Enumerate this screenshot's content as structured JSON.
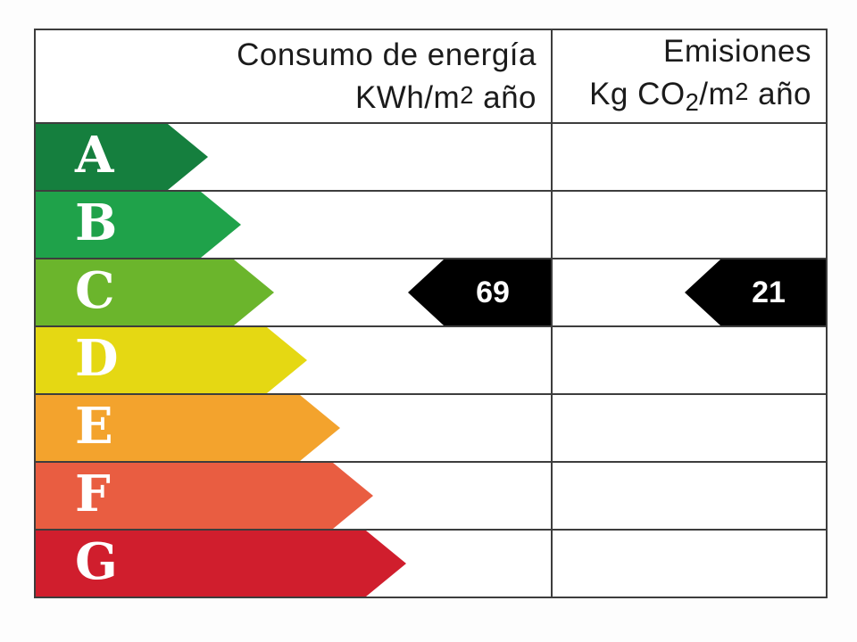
{
  "header": {
    "consumption": {
      "line1": "Consumo de energía",
      "line2": {
        "pre": "KWh/m",
        "sup": "2",
        "post": " año"
      }
    },
    "emissions": {
      "line1": "Emisiones",
      "line2": {
        "pre": "Kg CO",
        "sub": "2",
        "mid": "/m",
        "sup": "2",
        "post": " año"
      }
    }
  },
  "ratings": [
    {
      "letter": "A",
      "color": "#157f3e"
    },
    {
      "letter": "B",
      "color": "#1fa24a"
    },
    {
      "letter": "C",
      "color": "#6bb52c"
    },
    {
      "letter": "D",
      "color": "#e5d813"
    },
    {
      "letter": "E",
      "color": "#f3a32d"
    },
    {
      "letter": "F",
      "color": "#e95d41"
    },
    {
      "letter": "G",
      "color": "#d01e2d"
    }
  ],
  "indicators": {
    "consumption": {
      "value": "69",
      "rating": "C",
      "color": "#000000"
    },
    "emissions": {
      "value": "21",
      "rating": "C",
      "color": "#000000"
    }
  },
  "colors": {
    "border": "#3d3d3d",
    "header_text": "#1b1b1b",
    "arrow_text": "#ffffff",
    "background": "#fdfdfd"
  },
  "chart_data": {
    "type": "bar",
    "categories": [
      "A",
      "B",
      "C",
      "D",
      "E",
      "F",
      "G"
    ],
    "category_colors": [
      "#157f3e",
      "#1fa24a",
      "#6bb52c",
      "#e5d813",
      "#f3a32d",
      "#e95d41",
      "#d01e2d"
    ],
    "series": [
      {
        "name": "Consumo de energía KWh/m2 año",
        "value": 69,
        "rating": "C"
      },
      {
        "name": "Emisiones Kg CO2/m2 año",
        "value": 21,
        "rating": "C"
      }
    ],
    "layout": "energy-rating-ladder, bars lengthen from A to G, black left-pointing value arrows aligned to rating row C"
  }
}
